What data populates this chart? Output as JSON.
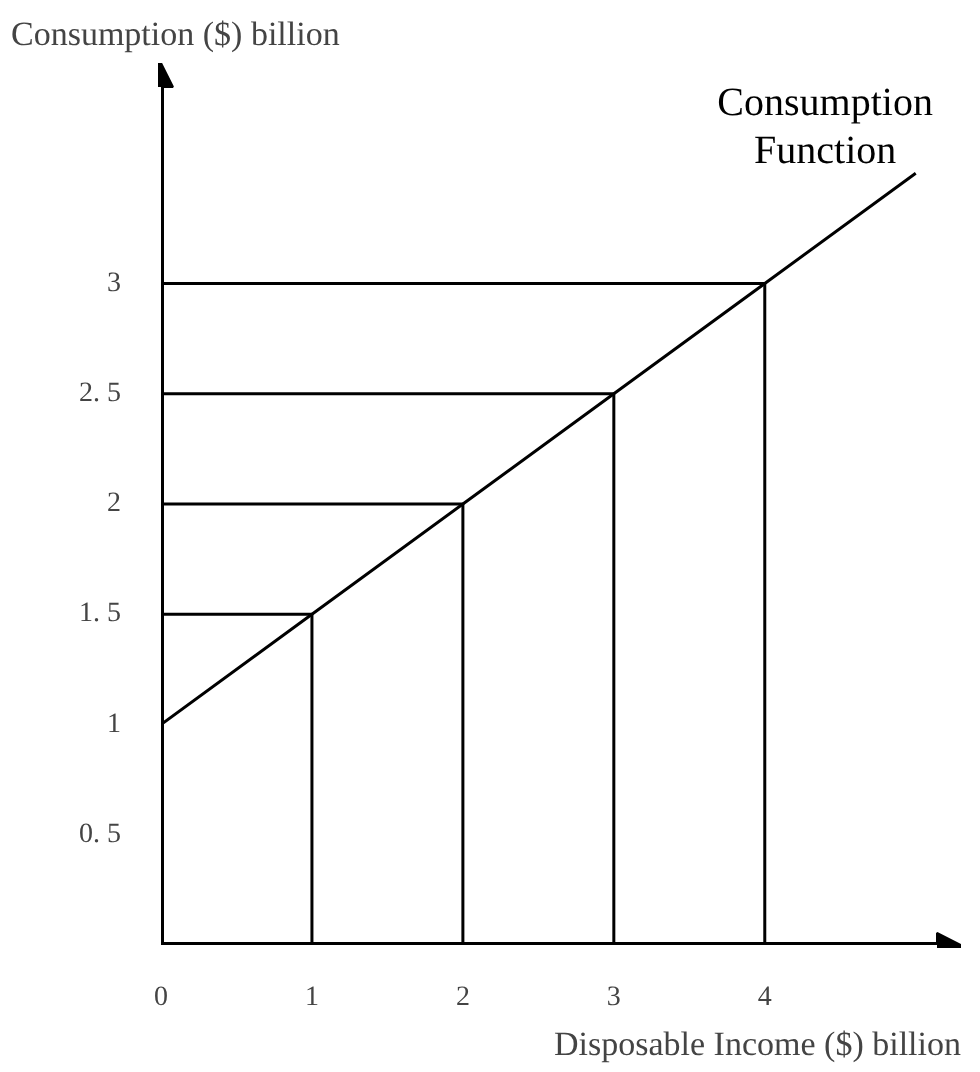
{
  "chart_data": {
    "type": "line",
    "xlabel": "Disposable Income ($) billion",
    "ylabel": "Consumption ($) billion",
    "series": [
      {
        "name": "Consumption Function",
        "color": "#000000",
        "x": [
          0,
          1,
          2,
          3,
          4,
          5
        ],
        "values": [
          1,
          1.5,
          2,
          2.5,
          3,
          3.5
        ]
      },
      {
        "color": "#000000",
        "x": [
          0,
          1,
          1
        ],
        "values": [
          1.5,
          1.5,
          0
        ]
      },
      {
        "color": "#000000",
        "x": [
          0,
          2,
          2
        ],
        "values": [
          2,
          2,
          0
        ]
      },
      {
        "color": "#000000",
        "x": [
          0,
          3,
          3
        ],
        "values": [
          2.5,
          2.5,
          0
        ]
      },
      {
        "color": "#000000",
        "x": [
          0,
          4,
          4
        ],
        "values": [
          3,
          3,
          0
        ]
      }
    ],
    "marker": "none",
    "grid": false,
    "xlim": [
      0,
      5.3
    ],
    "ylim": [
      0,
      4.0
    ],
    "xticks": [
      0,
      1,
      2,
      3,
      4
    ],
    "yticks": [
      {
        "value": 0.5,
        "label": "0. 5"
      },
      1,
      {
        "value": 1.5,
        "label": "1. 5"
      },
      2,
      {
        "value": 2.5,
        "label": "2. 5"
      },
      3
    ]
  }
}
